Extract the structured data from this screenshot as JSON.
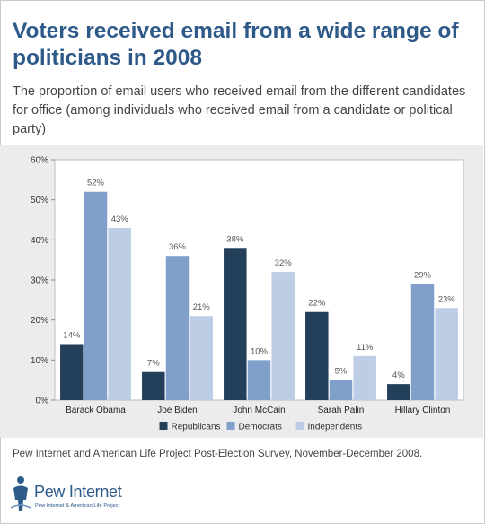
{
  "title": "Voters received email from a wide range of politicians in 2008",
  "subtitle": "The proportion of email users who received email from the different candidates for office (among individuals who received email from a candidate or political party)",
  "footnote": "Pew Internet and American Life Project Post-Election Survey, November-December 2008.",
  "logo": {
    "word1": "Pew",
    "word2": "Internet",
    "tagline": "Pew Internet & American Life Project",
    "icon": "pew-person-icon"
  },
  "colors": {
    "title": "#2e5a8a",
    "panel": "#ececec",
    "Republicans": "#243f5a",
    "Democrats": "#809fcb",
    "Independents": "#bccde5"
  },
  "chart_data": {
    "type": "bar",
    "categories": [
      "Barack Obama",
      "Joe Biden",
      "John McCain",
      "Sarah Palin",
      "Hillary Clinton"
    ],
    "series": [
      {
        "name": "Republicans",
        "values": [
          14,
          7,
          38,
          22,
          4
        ]
      },
      {
        "name": "Democrats",
        "values": [
          52,
          36,
          10,
          5,
          29
        ]
      },
      {
        "name": "Independents",
        "values": [
          43,
          21,
          32,
          11,
          23
        ]
      }
    ],
    "ylim": [
      0,
      60
    ],
    "yticks": [
      "0%",
      "10%",
      "20%",
      "30%",
      "40%",
      "50%",
      "60%"
    ],
    "value_suffix": "%",
    "legend_position": "bottom",
    "grid": false
  }
}
